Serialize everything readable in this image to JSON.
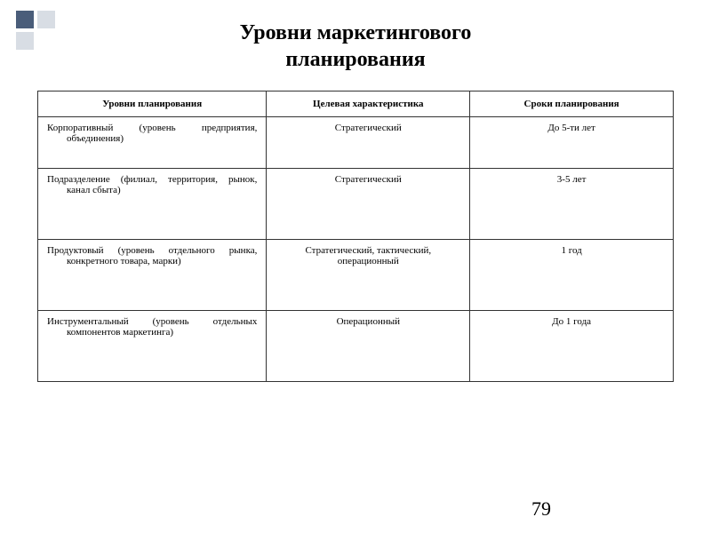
{
  "title_line1": "Уровни маркетингового",
  "title_line2": "планирования",
  "columns": [
    "Уровни планирования",
    "Целевая характеристика",
    "Сроки планирования"
  ],
  "rows": [
    {
      "level": "Корпоративный (уровень предприятия, объединения)",
      "target": "Стратегический",
      "term": "До 5-ти лет"
    },
    {
      "level": "Подразделение (филиал, территория, рынок, канал сбыта)",
      "target": "Стратегический",
      "term": "3-5 лет"
    },
    {
      "level": "Продуктовый (уровень отдельного рынка, конкретного товара, марки)",
      "target": "Стратегический, тактический, операционный",
      "term": "1 год"
    },
    {
      "level": "Инструментальный (уровень отдельных компонентов маркетинга)",
      "target": "Операционный",
      "term": "До 1 года"
    }
  ],
  "page_number": "79",
  "colors": {
    "accent_dark": "#4a5d7a",
    "accent_light": "#d8dde4",
    "border": "#333333",
    "text": "#000000",
    "background": "#ffffff"
  }
}
